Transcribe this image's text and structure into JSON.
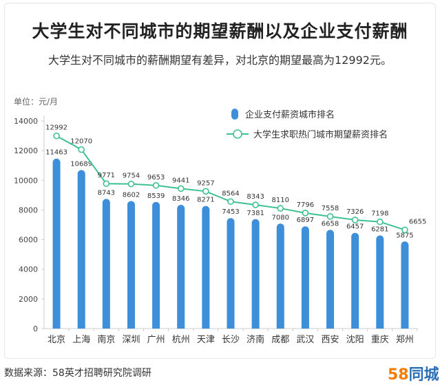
{
  "header": {
    "title": "大学生对不同城市的期望薪酬以及企业支付薪酬",
    "subtitle": "大学生对不同城市的薪酬期望有差异，对北京的期望最高为12992元。"
  },
  "unit_label": "单位：元/月",
  "footer": {
    "source": "数据来源：58英才招聘研究院调研",
    "logo_number": "58",
    "logo_text": "同城"
  },
  "colors": {
    "bar": "#3d8fd9",
    "line": "#3cc28e",
    "axis": "#cccccc"
  },
  "chart_data": {
    "type": "bar",
    "categories": [
      "北京",
      "上海",
      "南京",
      "深圳",
      "广州",
      "杭州",
      "天津",
      "长沙",
      "济南",
      "成都",
      "武汉",
      "西安",
      "沈阳",
      "重庆",
      "郑州"
    ],
    "series": [
      {
        "name": "企业支付薪资城市排名",
        "type": "bar",
        "values": [
          11463,
          10689,
          8743,
          8602,
          8539,
          8346,
          8271,
          7453,
          7381,
          7080,
          6897,
          6658,
          6457,
          6281,
          5875
        ]
      },
      {
        "name": "大学生求职热门城市期望薪资排名",
        "type": "line",
        "values": [
          12992,
          12070,
          9771,
          9754,
          9653,
          9441,
          9257,
          8564,
          8343,
          8110,
          7796,
          7558,
          7326,
          7198,
          6655
        ]
      }
    ],
    "yticks": [
      0,
      2000,
      4000,
      6000,
      8000,
      10000,
      12000,
      14000
    ],
    "ylim": [
      0,
      14000
    ],
    "ylabel": "单位：元/月",
    "legend_position": "top-right",
    "grid": false
  }
}
